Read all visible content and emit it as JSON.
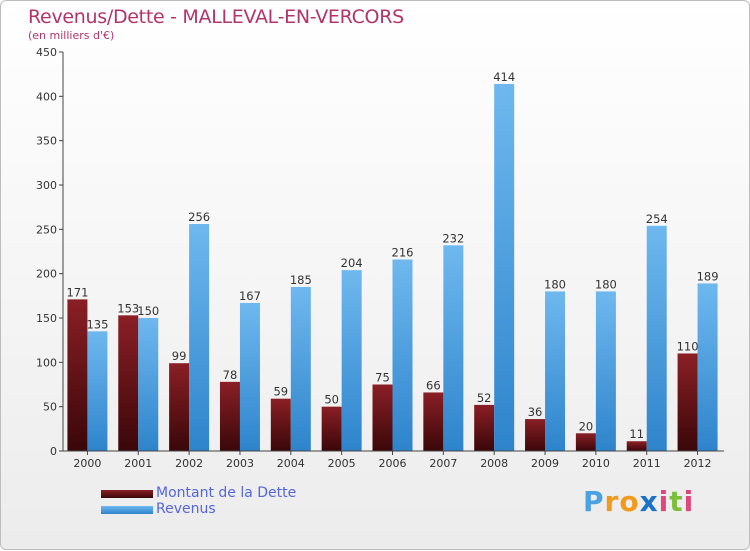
{
  "chart_data": {
    "type": "bar",
    "title": "Revenus/Dette - MALLEVAL-EN-VERCORS",
    "subtitle": "(en milliers d'€)",
    "xlabel": "",
    "ylabel": "",
    "categories": [
      "2000",
      "2001",
      "2002",
      "2003",
      "2004",
      "2005",
      "2006",
      "2007",
      "2008",
      "2009",
      "2010",
      "2011",
      "2012"
    ],
    "series": [
      {
        "name": "Montant de la Dette",
        "values": [
          171,
          153,
          99,
          78,
          59,
          50,
          75,
          66,
          52,
          36,
          20,
          11,
          110
        ]
      },
      {
        "name": "Revenus",
        "values": [
          135,
          150,
          256,
          167,
          185,
          204,
          216,
          232,
          414,
          180,
          180,
          254,
          189
        ]
      }
    ],
    "ylim": [
      0,
      450
    ],
    "yticks": [
      0,
      50,
      100,
      150,
      200,
      250,
      300,
      350,
      400,
      450
    ],
    "grid": false,
    "legend_position": "bottom-left"
  },
  "colors": {
    "title": "#b3336b",
    "debt_top": "#8a1f25",
    "debt_bottom": "#3a0709",
    "revenue_top": "#6fb8ef",
    "revenue_bottom": "#2e84cb",
    "legend_text": "#5566dd"
  },
  "logo": {
    "letters": [
      "P",
      "r",
      "o",
      "x",
      "i",
      "t",
      "i"
    ],
    "colors": [
      "#4aa3e0",
      "#f29a1c",
      "#f29a1c",
      "#1a73c9",
      "#e0457b",
      "#7cbf3a",
      "#e0457b"
    ]
  }
}
